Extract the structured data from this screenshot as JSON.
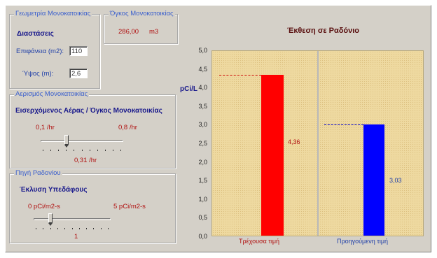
{
  "geometry": {
    "legend": "Γεωμετρία Μονοκατοικίας",
    "heading": "Διαστάσεις",
    "area_label": "Επιφάνεια (m2):",
    "area_value": "110",
    "height_label": "Ύψος (m):",
    "height_value": "2,6"
  },
  "volume": {
    "legend": "Όγκος Μονοκατοικίας",
    "value": "286,00",
    "unit": "m3"
  },
  "ventilation": {
    "legend": "Αερισμός Μονοκατοικίας",
    "heading": "Εισερχόμενος Αέρας / Όγκος Μονοκατοικίας",
    "min_label": "0,1 /hr",
    "max_label": "0,8 /hr",
    "value_label": "0,31 /hr",
    "min": 0.1,
    "max": 0.8,
    "value": 0.31
  },
  "source": {
    "legend": "Πηγή Ραδονίου",
    "heading": "Έκλυση Υπεδάφους",
    "min_label": "0 pCi/m2-s",
    "max_label": "5 pCi/m2-s",
    "value_label": "1",
    "min": 0,
    "max": 5,
    "value": 1
  },
  "colors": {
    "current": "#ff0000",
    "previous": "#0000ff",
    "plot_bg": "#eed9a0"
  },
  "chart_data": {
    "type": "bar",
    "title": "Έκθεση σε Ραδόνιο",
    "ylabel": "pCi/L",
    "xlabel": "",
    "ylim": [
      0,
      5
    ],
    "yticks": [
      "0,0",
      "0,5",
      "1,0",
      "1,5",
      "2,0",
      "2,5",
      "3,0",
      "3,5",
      "4,0",
      "4,5",
      "5,0"
    ],
    "categories": [
      "Τρέχουσα τιμή",
      "Προηγούμενη τιμή"
    ],
    "values": [
      4.36,
      3.03
    ],
    "value_labels": [
      "4,36",
      "3,03"
    ],
    "grid": false
  }
}
